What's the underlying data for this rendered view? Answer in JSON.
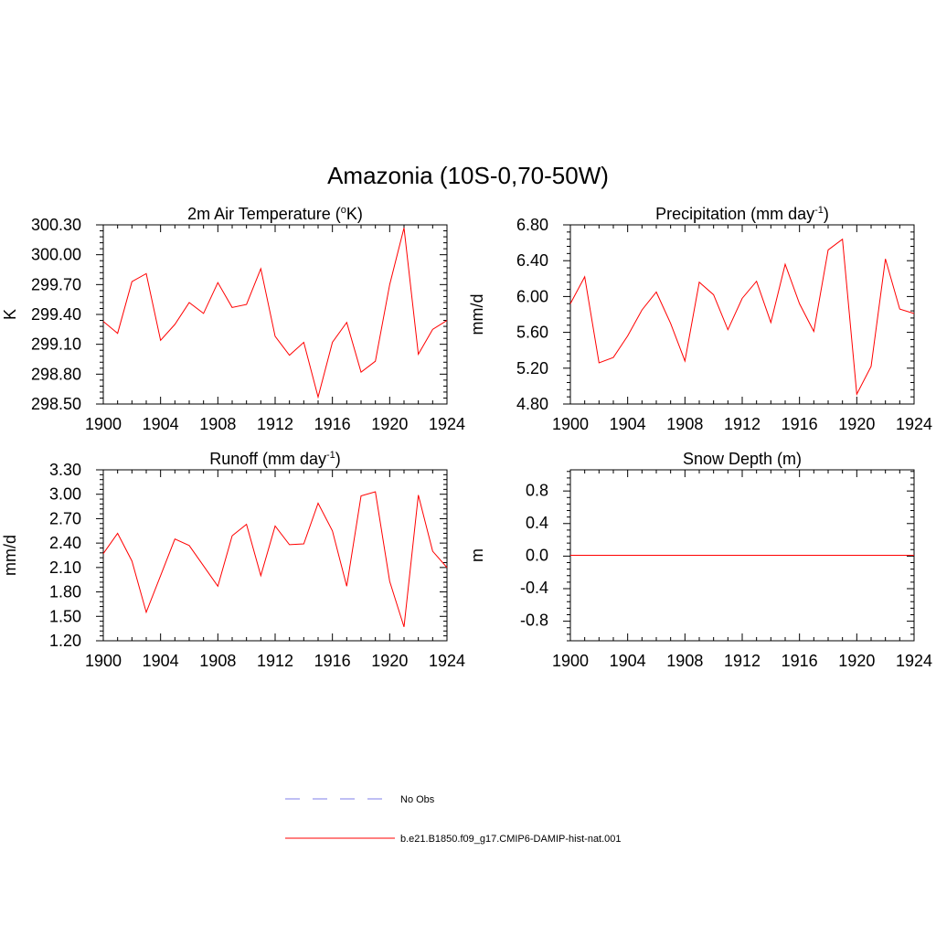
{
  "title": "Amazonia (10S-0,70-50W)",
  "colors": {
    "model": "#ff0000",
    "obs": "#9999ee",
    "axis": "#000000"
  },
  "x_years": [
    1900,
    1901,
    1902,
    1903,
    1904,
    1905,
    1906,
    1907,
    1908,
    1909,
    1910,
    1911,
    1912,
    1913,
    1914,
    1915,
    1916,
    1917,
    1918,
    1919,
    1920,
    1921,
    1922,
    1923,
    1924
  ],
  "chart_data": [
    {
      "type": "line",
      "title_main": "2m Air Temperature (",
      "title_sup": "o",
      "title_end": "K)",
      "ylabel": "K",
      "xlim": [
        1900,
        1924
      ],
      "ylim": [
        298.5,
        300.3
      ],
      "xticks": [
        1900,
        1904,
        1908,
        1912,
        1916,
        1920,
        1924
      ],
      "yticks": [
        298.5,
        298.8,
        299.1,
        299.4,
        299.7,
        300.0,
        300.3
      ],
      "ytick_labels": [
        "298.50",
        "298.80",
        "299.10",
        "299.40",
        "299.70",
        "300.00",
        "300.30"
      ],
      "x": [
        1900,
        1901,
        1902,
        1903,
        1904,
        1905,
        1906,
        1907,
        1908,
        1909,
        1910,
        1911,
        1912,
        1913,
        1914,
        1915,
        1916,
        1917,
        1918,
        1919,
        1920,
        1921,
        1922,
        1923,
        1924
      ],
      "series": [
        {
          "name": "b.e21.B1850.f09_g17.CMIP6-DAMIP-hist-nat.001",
          "values": [
            299.33,
            299.21,
            299.73,
            299.81,
            299.14,
            299.3,
            299.52,
            299.41,
            299.72,
            299.47,
            299.5,
            299.86,
            299.18,
            298.99,
            299.12,
            298.57,
            299.12,
            299.32,
            298.82,
            298.93,
            299.7,
            300.27,
            299.0,
            299.25,
            299.34
          ]
        }
      ]
    },
    {
      "type": "line",
      "title_main": "Precipitation (mm day",
      "title_sup": "-1",
      "title_end": ")",
      "ylabel": "mm/d",
      "xlim": [
        1900,
        1924
      ],
      "ylim": [
        4.8,
        6.8
      ],
      "xticks": [
        1900,
        1904,
        1908,
        1912,
        1916,
        1920,
        1924
      ],
      "yticks": [
        4.8,
        5.2,
        5.6,
        6.0,
        6.4,
        6.8
      ],
      "ytick_labels": [
        "4.80",
        "5.20",
        "5.60",
        "6.00",
        "6.40",
        "6.80"
      ],
      "x": [
        1900,
        1901,
        1902,
        1903,
        1904,
        1905,
        1906,
        1907,
        1908,
        1909,
        1910,
        1911,
        1912,
        1913,
        1914,
        1915,
        1916,
        1917,
        1918,
        1919,
        1920,
        1921,
        1922,
        1923,
        1924
      ],
      "series": [
        {
          "name": "b.e21.B1850.f09_g17.CMIP6-DAMIP-hist-nat.001",
          "values": [
            5.92,
            6.22,
            5.26,
            5.32,
            5.56,
            5.85,
            6.05,
            5.7,
            5.28,
            6.16,
            6.02,
            5.63,
            5.98,
            6.17,
            5.71,
            6.36,
            5.92,
            5.61,
            6.52,
            6.64,
            4.91,
            5.22,
            6.42,
            5.86,
            5.81
          ]
        }
      ]
    },
    {
      "type": "line",
      "title_main": "Runoff (mm day",
      "title_sup": "-1",
      "title_end": ")",
      "ylabel": "mm/d",
      "xlim": [
        1900,
        1924
      ],
      "ylim": [
        1.2,
        3.3
      ],
      "xticks": [
        1900,
        1904,
        1908,
        1912,
        1916,
        1920,
        1924
      ],
      "yticks": [
        1.2,
        1.5,
        1.8,
        2.1,
        2.4,
        2.7,
        3.0,
        3.3
      ],
      "ytick_labels": [
        "1.20",
        "1.50",
        "1.80",
        "2.10",
        "2.40",
        "2.70",
        "3.00",
        "3.30"
      ],
      "x": [
        1900,
        1901,
        1902,
        1903,
        1904,
        1905,
        1906,
        1907,
        1908,
        1909,
        1910,
        1911,
        1912,
        1913,
        1914,
        1915,
        1916,
        1917,
        1918,
        1919,
        1920,
        1921,
        1922,
        1923,
        1924
      ],
      "series": [
        {
          "name": "b.e21.B1850.f09_g17.CMIP6-DAMIP-hist-nat.001",
          "values": [
            2.27,
            2.52,
            2.18,
            1.55,
            2.0,
            2.45,
            2.37,
            2.12,
            1.87,
            2.49,
            2.63,
            2.0,
            2.61,
            2.38,
            2.39,
            2.89,
            2.55,
            1.87,
            2.98,
            3.03,
            1.93,
            1.37,
            2.99,
            2.3,
            2.1
          ]
        }
      ]
    },
    {
      "type": "line",
      "title_main": "Snow Depth (m)",
      "title_sup": "",
      "title_end": "",
      "ylabel": "m",
      "xlim": [
        1900,
        1924
      ],
      "ylim": [
        -1.05,
        1.05
      ],
      "xticks": [
        1900,
        1904,
        1908,
        1912,
        1916,
        1920,
        1924
      ],
      "yticks": [
        -0.8,
        -0.4,
        0.0,
        0.4,
        0.8
      ],
      "ytick_labels": [
        "-0.8",
        "-0.4",
        "0.0",
        "0.4",
        "0.8"
      ],
      "x": [
        1900,
        1901,
        1902,
        1903,
        1904,
        1905,
        1906,
        1907,
        1908,
        1909,
        1910,
        1911,
        1912,
        1913,
        1914,
        1915,
        1916,
        1917,
        1918,
        1919,
        1920,
        1921,
        1922,
        1923,
        1924
      ],
      "series": [
        {
          "name": "b.e21.B1850.f09_g17.CMIP6-DAMIP-hist-nat.001",
          "values": [
            0,
            0,
            0,
            0,
            0,
            0,
            0,
            0,
            0,
            0,
            0,
            0,
            0,
            0,
            0,
            0,
            0,
            0,
            0,
            0,
            0,
            0,
            0,
            0,
            0
          ]
        }
      ]
    }
  ],
  "legend": [
    {
      "label": "No Obs",
      "style": "dashed",
      "color": "#9999ee"
    },
    {
      "label": "b.e21.B1850.f09_g17.CMIP6-DAMIP-hist-nat.001",
      "style": "solid",
      "color": "#ff0000"
    }
  ]
}
